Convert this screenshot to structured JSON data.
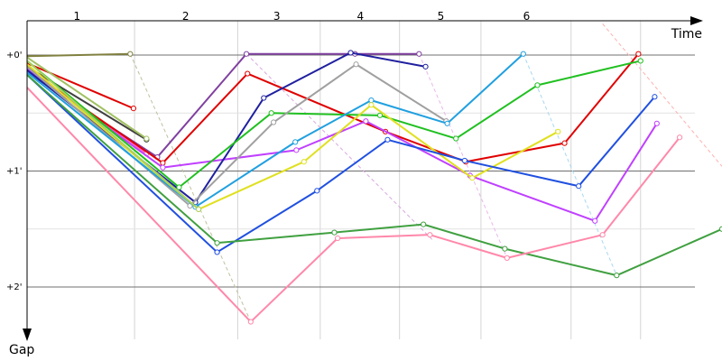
{
  "chart_data": {
    "type": "line",
    "title": "",
    "xlabel": "Time",
    "ylabel": "Gap",
    "lap_labels": [
      "1",
      "2",
      "3",
      "4",
      "5",
      "6"
    ],
    "y_tick_labels": [
      "+0'",
      "+1'",
      "+2'"
    ],
    "y_ticks": [
      0,
      1,
      2
    ],
    "xlim": [
      0,
      6.4
    ],
    "ylim": [
      2.5,
      -0.27
    ],
    "grid": true,
    "legend": "none",
    "lap_boundaries": [
      0,
      0.99,
      1.94,
      2.7,
      3.43,
      4.18,
      5.01,
      5.65
    ],
    "lap_centers": [
      0.46,
      1.46,
      2.3,
      3.07,
      3.81,
      4.6
    ],
    "series": [
      {
        "color": "#808040",
        "points": [
          [
            0.0,
            0.01
          ],
          [
            0.95,
            -0.01
          ]
        ]
      },
      {
        "color": "#e00000",
        "points": [
          [
            0.0,
            0.07
          ],
          [
            0.98,
            0.46
          ]
        ]
      },
      {
        "color": "#404040",
        "points": [
          [
            0.0,
            0.1
          ],
          [
            1.1,
            0.73
          ]
        ]
      },
      {
        "color": "#a0c060",
        "points": [
          [
            0.0,
            0.02
          ],
          [
            1.1,
            0.72
          ]
        ]
      },
      {
        "color": "#ff66cc",
        "points": [
          [
            0.0,
            0.12
          ],
          [
            1.1,
            0.85
          ]
        ]
      },
      {
        "color": "#8040a0",
        "points": [
          [
            0.0,
            0.15
          ],
          [
            1.2,
            0.88
          ],
          [
            2.02,
            -0.01
          ],
          [
            3.02,
            -0.01
          ],
          [
            3.61,
            -0.01
          ]
        ]
      },
      {
        "color": "#e00000",
        "points": [
          [
            0.0,
            0.12
          ],
          [
            1.25,
            0.93
          ],
          [
            2.03,
            0.16
          ],
          [
            3.3,
            0.66
          ],
          [
            4.04,
            0.92
          ],
          [
            4.95,
            0.76
          ],
          [
            5.63,
            -0.01
          ]
        ]
      },
      {
        "color": "#c040ff",
        "points": [
          [
            0.0,
            0.12
          ],
          [
            1.25,
            0.97
          ],
          [
            2.48,
            0.82
          ],
          [
            3.12,
            0.57
          ],
          [
            4.08,
            1.04
          ],
          [
            5.23,
            1.43
          ],
          [
            5.8,
            0.59
          ]
        ]
      },
      {
        "color": "#2020a0",
        "points": [
          [
            0.0,
            0.13
          ],
          [
            1.55,
            1.27
          ],
          [
            2.18,
            0.37
          ],
          [
            2.98,
            -0.02
          ],
          [
            3.67,
            0.1
          ]
        ]
      },
      {
        "color": "#20c020",
        "points": [
          [
            0.0,
            0.05
          ],
          [
            1.4,
            1.14
          ],
          [
            2.25,
            0.5
          ],
          [
            3.25,
            0.52
          ],
          [
            3.95,
            0.72
          ],
          [
            4.7,
            0.26
          ],
          [
            5.65,
            0.05
          ]
        ]
      },
      {
        "color": "#a0a0a0",
        "points": [
          [
            0.0,
            0.1
          ],
          [
            1.5,
            1.3
          ],
          [
            2.27,
            0.58
          ],
          [
            3.03,
            0.08
          ],
          [
            3.86,
            0.57
          ]
        ]
      },
      {
        "color": "#20a0e0",
        "points": [
          [
            0.0,
            0.15
          ],
          [
            1.55,
            1.31
          ],
          [
            2.47,
            0.75
          ],
          [
            3.17,
            0.39
          ],
          [
            3.87,
            0.59
          ],
          [
            4.57,
            -0.01
          ]
        ]
      },
      {
        "color": "#e0e020",
        "points": [
          [
            0.0,
            0.08
          ],
          [
            1.58,
            1.33
          ],
          [
            2.55,
            0.92
          ],
          [
            3.17,
            0.43
          ],
          [
            4.1,
            1.06
          ],
          [
            4.89,
            0.66
          ]
        ]
      },
      {
        "color": "#2050e0",
        "points": [
          [
            0.0,
            0.17
          ],
          [
            1.75,
            1.7
          ],
          [
            2.67,
            1.17
          ],
          [
            3.32,
            0.73
          ],
          [
            4.03,
            0.91
          ],
          [
            5.08,
            1.13
          ],
          [
            5.78,
            0.36
          ]
        ]
      },
      {
        "color": "#a8d060",
        "points": [
          [
            0.0,
            0.05
          ],
          [
            1.58,
            1.33
          ]
        ]
      },
      {
        "color": "#40a040",
        "points": [
          [
            0.0,
            0.17
          ],
          [
            1.75,
            1.62
          ],
          [
            2.83,
            1.53
          ],
          [
            3.65,
            1.46
          ],
          [
            4.4,
            1.67
          ],
          [
            5.43,
            1.9
          ],
          [
            6.4,
            1.5
          ]
        ]
      },
      {
        "color": "#ff88aa",
        "points": [
          [
            0.0,
            0.28
          ],
          [
            2.06,
            2.3
          ],
          [
            2.86,
            1.58
          ],
          [
            3.71,
            1.55
          ],
          [
            4.42,
            1.75
          ],
          [
            5.3,
            1.55
          ],
          [
            6.01,
            0.71
          ]
        ]
      }
    ],
    "pit_lines": [
      {
        "color": "#c0c0a0",
        "points": [
          [
            0.95,
            -0.01
          ],
          [
            2.06,
            2.3
          ]
        ]
      },
      {
        "color": "#d8a8e0",
        "points": [
          [
            2.02,
            -0.01
          ],
          [
            3.73,
            1.59
          ]
        ]
      },
      {
        "color": "#e8b8e8",
        "points": [
          [
            3.61,
            -0.01
          ],
          [
            4.42,
            1.75
          ]
        ]
      },
      {
        "color": "#a8d8f0",
        "points": [
          [
            4.57,
            -0.01
          ],
          [
            5.43,
            1.9
          ]
        ]
      },
      {
        "color": "#ffb0b0",
        "points": [
          [
            5.3,
            -0.27
          ],
          [
            6.4,
            0.96
          ]
        ]
      }
    ]
  }
}
